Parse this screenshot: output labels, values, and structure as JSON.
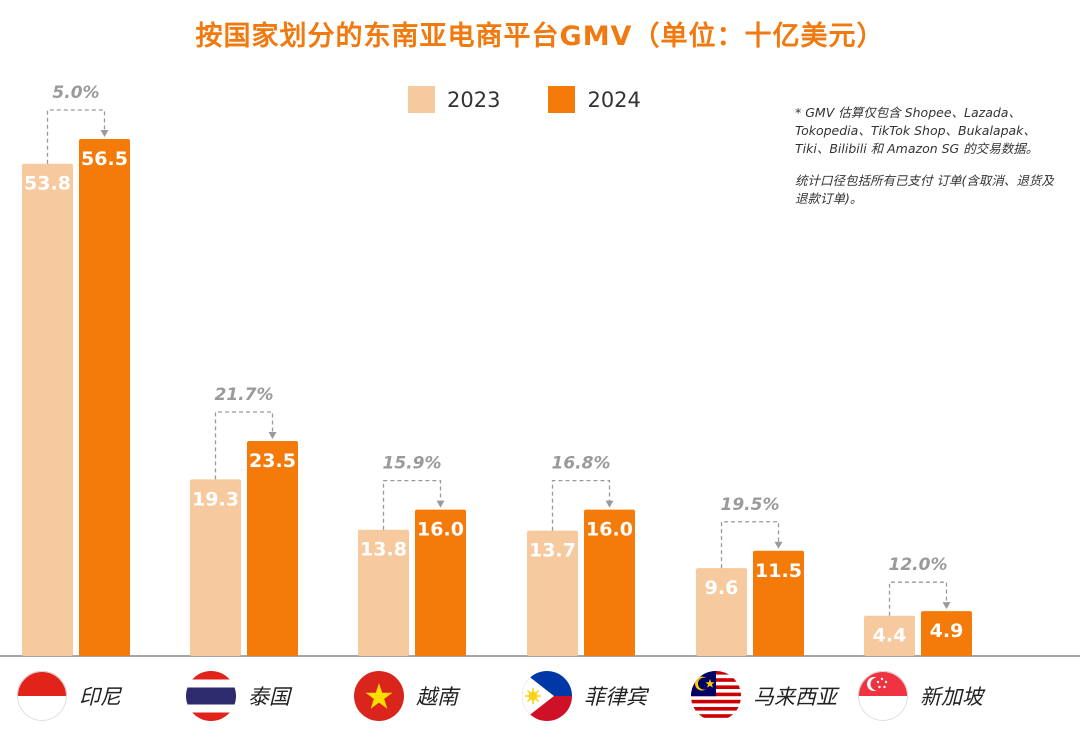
{
  "title": "按国家划分的东南亚电商平台GMV（单位：十亿美元）",
  "legend": {
    "y2023": "2023",
    "y2024": "2024"
  },
  "colors": {
    "c2023": "#f7c99e",
    "c2024": "#f47b09",
    "pct": "#9a9a9a",
    "axis": "#888888"
  },
  "note": {
    "line1": "* GMV 估算仅包含 Shopee、Lazada、Tokopedia、TikTok Shop、Bukalapak、Tiki、Bilibili 和 Amazon SG 的交易数据。",
    "line2": "统计口径包括所有已支付 订单(含取消、退货及退款订单)。"
  },
  "chart_data": {
    "type": "bar",
    "title": "按国家划分的东南亚电商平台GMV（单位：十亿美元）",
    "categories": [
      "印尼",
      "泰国",
      "越南",
      "菲律宾",
      "马来西亚",
      "新加坡"
    ],
    "series": [
      {
        "name": "2023",
        "values": [
          53.8,
          19.3,
          13.8,
          13.7,
          9.6,
          4.4
        ]
      },
      {
        "name": "2024",
        "values": [
          56.5,
          23.5,
          16.0,
          16.0,
          11.5,
          4.9
        ]
      }
    ],
    "labels_2023": [
      "53.8",
      "19.3",
      "13.8",
      "13.7",
      "9.6",
      "4.4"
    ],
    "labels_2024": [
      "56.5",
      "23.5",
      "16.0",
      "16.0",
      "11.5",
      "4.9"
    ],
    "growth": [
      "5.0%",
      "21.7%",
      "15.9%",
      "16.8%",
      "19.5%",
      "12.0%"
    ],
    "ylim": [
      0,
      60
    ],
    "xlabel": "",
    "ylabel": ""
  },
  "countries": [
    {
      "name": "印尼",
      "flag": "indonesia-flag"
    },
    {
      "name": "泰国",
      "flag": "thailand-flag"
    },
    {
      "name": "越南",
      "flag": "vietnam-flag"
    },
    {
      "name": "菲律宾",
      "flag": "philippines-flag"
    },
    {
      "name": "马来西亚",
      "flag": "malaysia-flag"
    },
    {
      "name": "新加坡",
      "flag": "singapore-flag"
    }
  ]
}
